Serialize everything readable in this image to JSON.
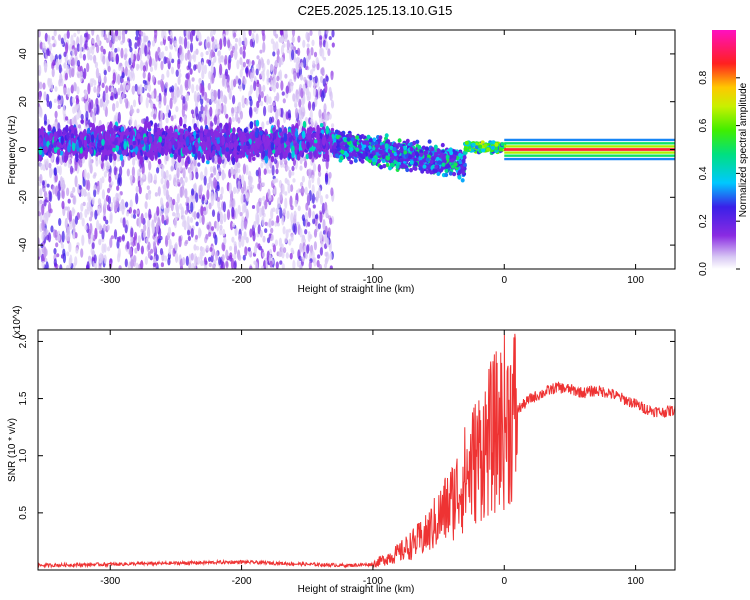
{
  "title": "C2E5.2025.125.13.10.G15",
  "chart_data": [
    {
      "type": "heatmap",
      "xlabel": "Height of straight line (km)",
      "ylabel": "Frequency (Hz)",
      "xlim": [
        -355,
        130
      ],
      "ylim": [
        -50,
        50
      ],
      "xticks": [
        -300,
        -200,
        -100,
        0,
        100
      ],
      "yticks": [
        -40,
        -20,
        0,
        20,
        40
      ],
      "colorbar": {
        "label": "Normalized spectral amplitude",
        "range": [
          0.0,
          1.0
        ],
        "ticks": [
          "0.0",
          "0.2",
          "0.4",
          "0.6",
          "0.8"
        ]
      },
      "bands": [
        {
          "x_range": [
            -355,
            -130
          ],
          "center_freq": 3,
          "amplitude": 0.2,
          "note": "noisy purple band with scattered cyan spots, broad background scatter"
        },
        {
          "x_range": [
            -130,
            -30
          ],
          "center_freq_start": 2,
          "center_freq_end": -6,
          "amplitude": 0.35,
          "note": "cyan/green clusters"
        },
        {
          "x_range": [
            -30,
            0
          ],
          "center_freq": 1,
          "amplitude": 0.45
        },
        {
          "x_range": [
            0,
            130
          ],
          "center_freq": 0,
          "amplitude": 1.0,
          "note": "continuous red carrier line"
        }
      ]
    },
    {
      "type": "line",
      "xlabel": "Height of straight line (km)",
      "ylabel": "SNR (10 * v/v)",
      "y_multiplier": "(x10^4)",
      "xlim": [
        -355,
        130
      ],
      "ylim": [
        0,
        2.1
      ],
      "xticks": [
        -300,
        -200,
        -100,
        0,
        100
      ],
      "yticks": [
        0.5,
        1.0,
        1.5,
        2.0
      ],
      "ytick_labels": [
        "0.5",
        "1.0",
        "1.5",
        "2.0"
      ],
      "series": [
        {
          "color": "#ee3333",
          "x": [
            -355,
            -300,
            -250,
            -200,
            -150,
            -120,
            -100,
            -80,
            -60,
            -50,
            -40,
            -30,
            -20,
            -10,
            0,
            10,
            20,
            30,
            40,
            50,
            60,
            70,
            80,
            90,
            100,
            110,
            120,
            130
          ],
          "y": [
            0.04,
            0.05,
            0.06,
            0.07,
            0.05,
            0.04,
            0.05,
            0.15,
            0.3,
            0.45,
            0.6,
            0.8,
            1.0,
            1.15,
            1.3,
            1.4,
            1.5,
            1.55,
            1.6,
            1.58,
            1.55,
            1.57,
            1.55,
            1.5,
            1.45,
            1.4,
            1.38,
            1.4
          ]
        }
      ]
    }
  ]
}
